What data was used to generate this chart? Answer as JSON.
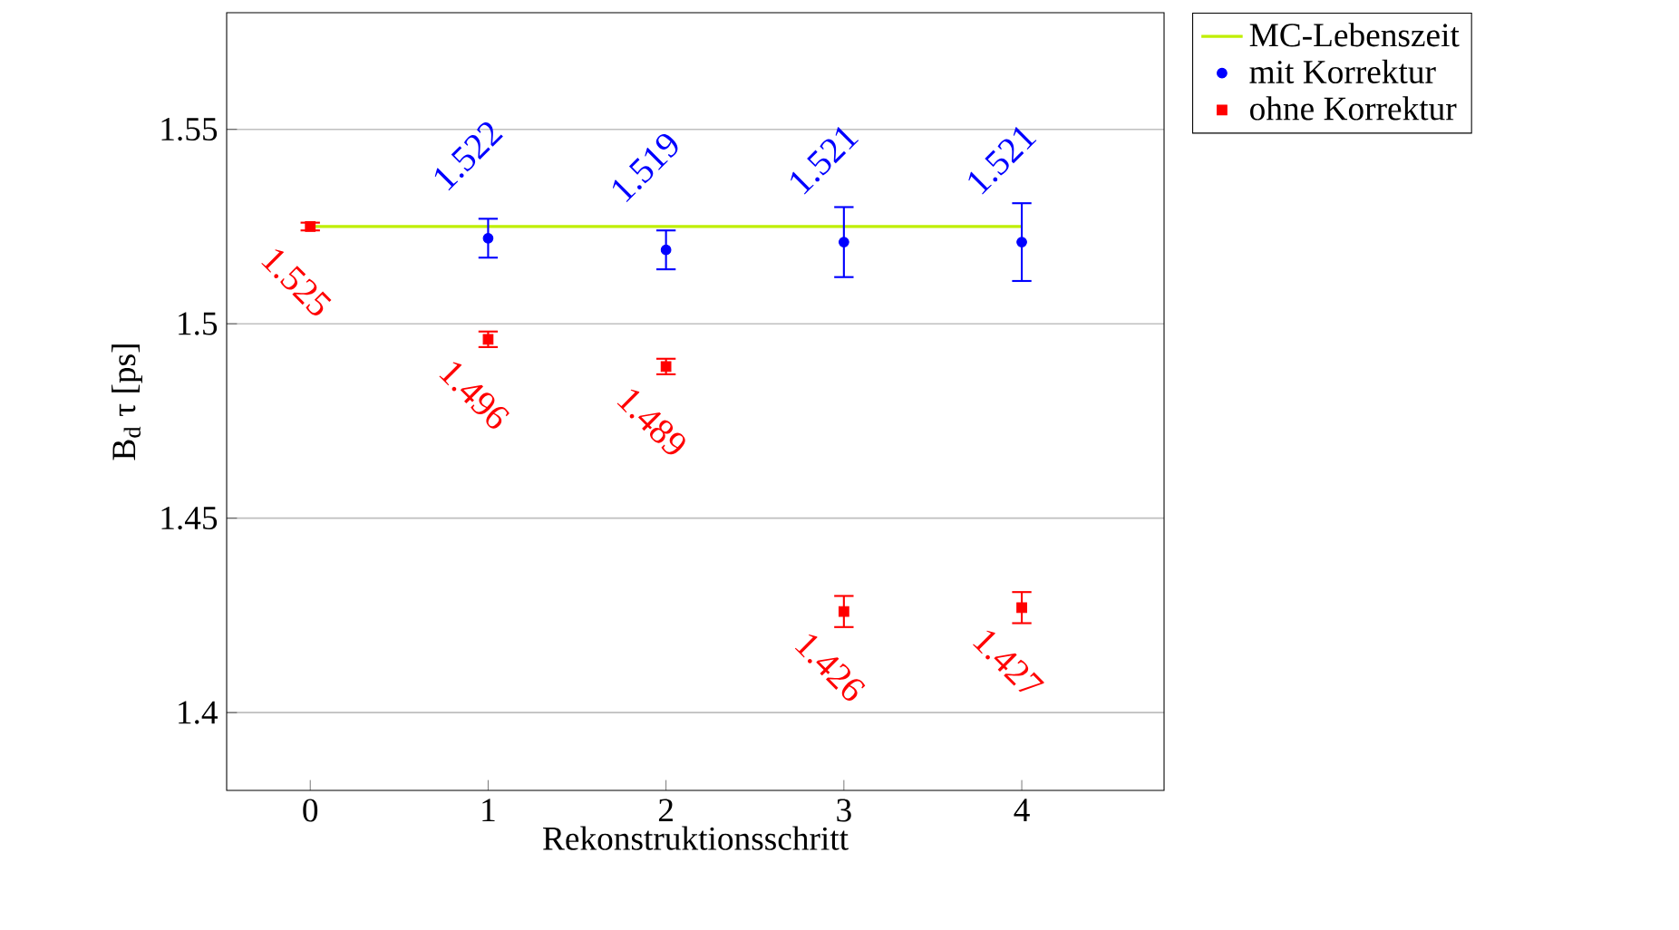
{
  "chart_data": {
    "type": "scatter",
    "xlabel": "Rekonstruktionsschritt",
    "ylabel": "B$_{d}$ τ [ps]",
    "xlim": [
      -0.47,
      4.8
    ],
    "ylim": [
      1.38,
      1.58
    ],
    "xticks": [
      0,
      1,
      2,
      3,
      4
    ],
    "yticks": [
      1.4,
      1.45,
      1.5,
      1.55
    ],
    "grid": "y",
    "legend": "top right",
    "series": [
      {
        "name": "MC-Lebenszeit",
        "type": "line",
        "color": "#bfef00",
        "x": [
          0,
          4
        ],
        "values": [
          1.525,
          1.525
        ],
        "marker": "none"
      },
      {
        "name": "mit Korrektur",
        "color": "#0000ff",
        "marker": "circle",
        "x": [
          1,
          2,
          3,
          4
        ],
        "values": [
          1.522,
          1.519,
          1.521,
          1.521
        ],
        "errors": [
          0.005,
          0.005,
          0.009,
          0.01
        ],
        "value_labels": [
          "1.522",
          "1.519",
          "1.521",
          "1.521"
        ]
      },
      {
        "name": "ohne Korrektur",
        "color": "#ff0000",
        "marker": "square",
        "x": [
          0,
          1,
          2,
          3,
          4
        ],
        "values": [
          1.525,
          1.496,
          1.489,
          1.426,
          1.427
        ],
        "errors": [
          0.001,
          0.002,
          0.002,
          0.004,
          0.004
        ],
        "value_labels": [
          "1.525",
          "1.496",
          "1.489",
          "1.426",
          "1.427"
        ]
      }
    ]
  }
}
